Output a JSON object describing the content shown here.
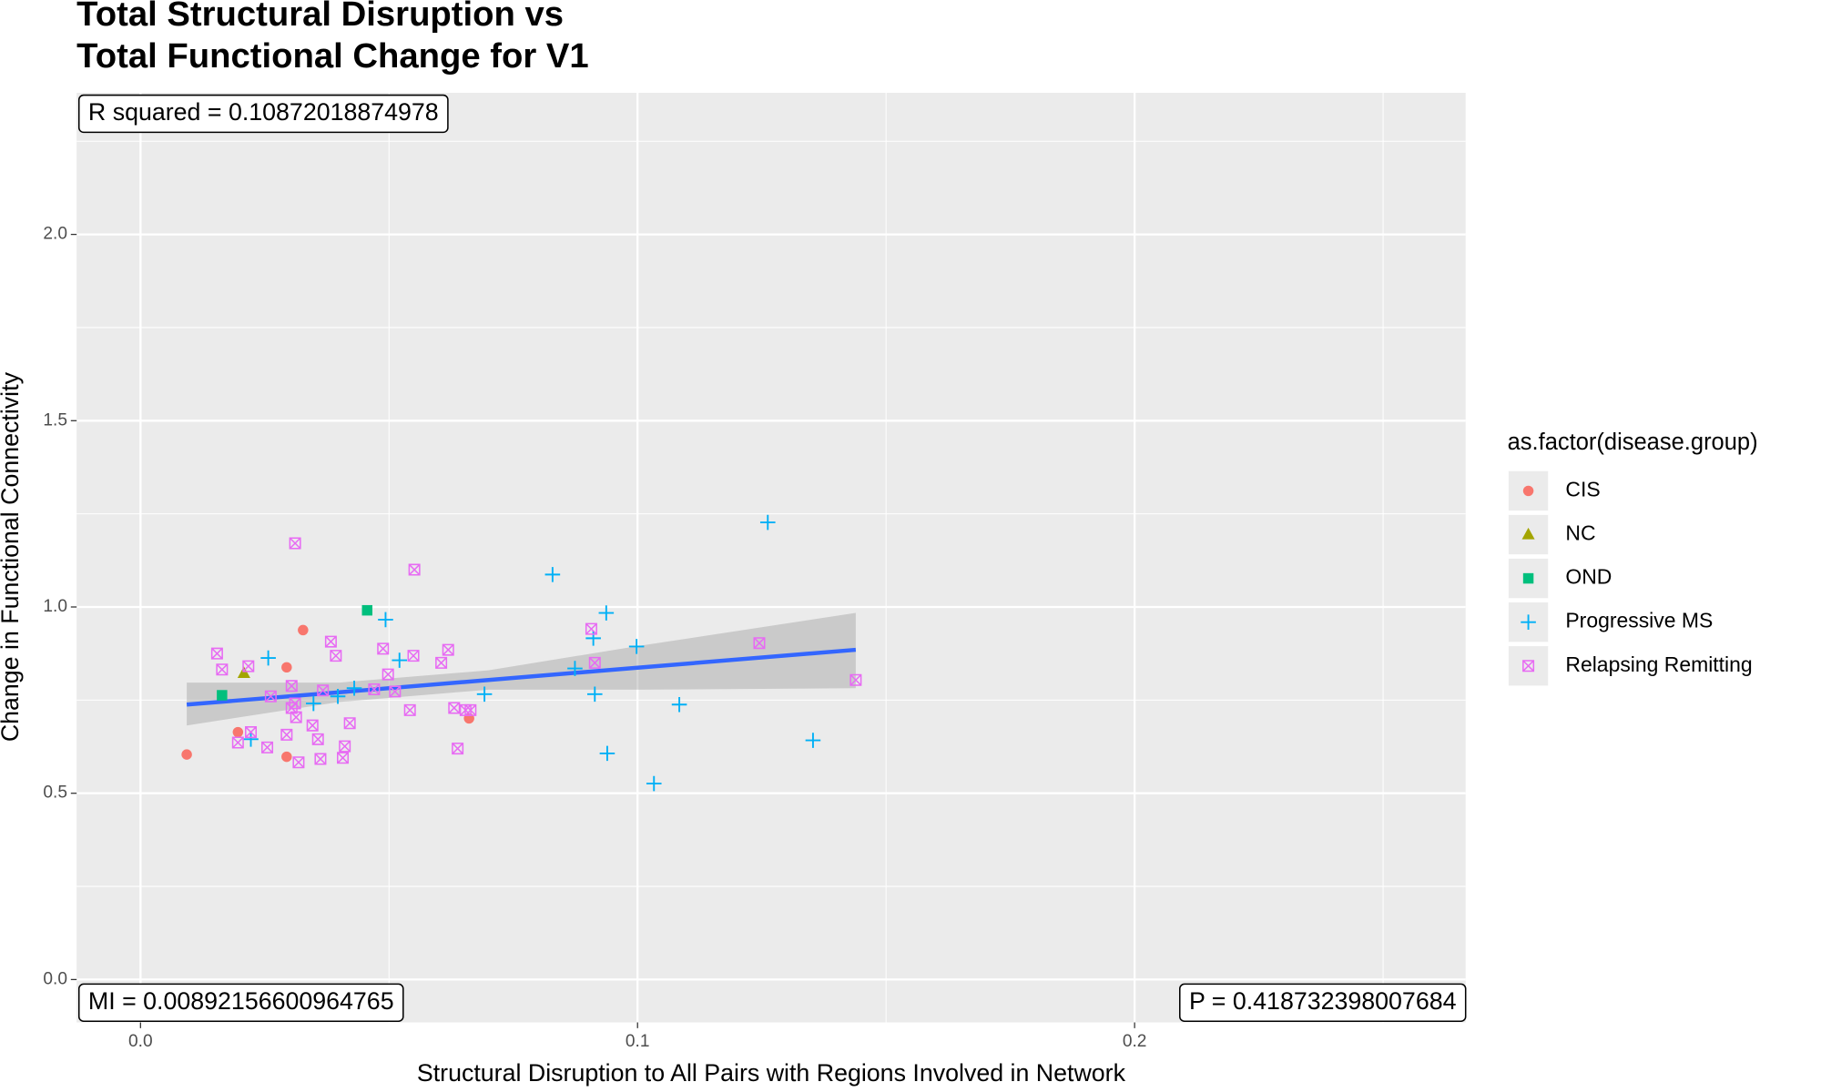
{
  "chart_data": {
    "type": "scatter",
    "title": [
      "Total Structural Disruption vs",
      "Total Functional Change for V1"
    ],
    "x_label": "Structural Disruption to All Pairs with Regions Involved in Network",
    "y_label": "Change in Functional Connectivity",
    "legend_title": "as.factor(disease.group)",
    "legend_position": "right",
    "grid": true,
    "annotations": [
      "R squared =  0.10872018874978",
      "MI =  0.00892156600964765",
      "P =  0.418732398007684"
    ],
    "xlim": [
      -0.01285,
      0.2666
    ],
    "ylim": [
      -0.115,
      2.38
    ],
    "xticks": [
      {
        "value": 0,
        "label": "0.0"
      },
      0.1,
      0.2
    ],
    "yticks": [
      {
        "value": 0,
        "label": "0.0"
      },
      0.5,
      {
        "value": 1,
        "label": "1.0"
      },
      1.5,
      {
        "value": 2,
        "label": "2.0"
      }
    ],
    "series": [
      {
        "name": "CIS",
        "color": "#F8766D",
        "marker": "circle",
        "x": [
          0.0093,
          0.0196,
          0.0294,
          0.0327,
          0.0294,
          0.0661
        ],
        "values": [
          0.604,
          0.664,
          0.838,
          0.938,
          0.598,
          0.701
        ]
      },
      {
        "name": "NC",
        "color": "#A3A500",
        "marker": "triangle",
        "x": [
          0.0208
        ],
        "values": [
          0.822
        ]
      },
      {
        "name": "OND",
        "color": "#00BF7D",
        "marker": "square",
        "x": [
          0.0164,
          0.0456
        ],
        "values": [
          0.763,
          0.991
        ]
      },
      {
        "name": "Progressive MS",
        "color": "#00B0F6",
        "marker": "plus",
        "x": [
          0.0257,
          0.0222,
          0.0348,
          0.0397,
          0.043,
          0.0493,
          0.0521,
          0.0692,
          0.0829,
          0.0874,
          0.0911,
          0.0914,
          0.0937,
          0.0939,
          0.0998,
          0.1033,
          0.1084,
          0.1262,
          0.1353
        ],
        "values": [
          0.863,
          0.645,
          0.741,
          0.76,
          0.782,
          0.966,
          0.857,
          0.766,
          1.087,
          0.835,
          0.916,
          0.766,
          0.984,
          0.607,
          0.894,
          0.526,
          0.738,
          1.227,
          0.642
        ]
      },
      {
        "name": "Relapsing Remitting",
        "color": "#E76BF3",
        "marker": "boxcross",
        "x": [
          0.0154,
          0.0164,
          0.0217,
          0.0196,
          0.0222,
          0.0255,
          0.0262,
          0.0294,
          0.0304,
          0.0304,
          0.0311,
          0.0311,
          0.0313,
          0.0318,
          0.0346,
          0.0357,
          0.0362,
          0.0367,
          0.0383,
          0.0393,
          0.0407,
          0.0411,
          0.0421,
          0.047,
          0.0488,
          0.0498,
          0.0512,
          0.0542,
          0.0549,
          0.0551,
          0.0605,
          0.0619,
          0.0631,
          0.0638,
          0.0654,
          0.0664,
          0.0907,
          0.0914,
          0.1245,
          0.1439
        ],
        "values": [
          0.875,
          0.832,
          0.841,
          0.636,
          0.664,
          0.623,
          0.76,
          0.657,
          0.788,
          0.729,
          1.171,
          0.741,
          0.704,
          0.583,
          0.682,
          0.645,
          0.592,
          0.776,
          0.907,
          0.869,
          0.595,
          0.626,
          0.688,
          0.779,
          0.888,
          0.819,
          0.773,
          0.723,
          0.869,
          1.1,
          0.85,
          0.885,
          0.729,
          0.62,
          0.723,
          0.723,
          0.941,
          0.85,
          0.903,
          0.804
        ]
      }
    ],
    "fit": {
      "color": "#3366FF",
      "band_color": "#999999",
      "x": [
        0.0093,
        0.04,
        0.07,
        0.1,
        0.1439
      ],
      "values": [
        0.738,
        0.771,
        0.804,
        0.837,
        0.885
      ],
      "lower": [
        0.682,
        0.745,
        0.778,
        0.778,
        0.782
      ],
      "upper": [
        0.797,
        0.797,
        0.83,
        0.895,
        0.984
      ]
    }
  }
}
